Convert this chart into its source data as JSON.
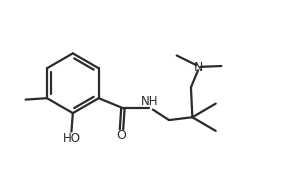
{
  "background": "#ffffff",
  "line_color": "#2b2b2b",
  "line_width": 1.6,
  "fig_width": 2.88,
  "fig_height": 1.75,
  "dpi": 100,
  "xlim": [
    0,
    10
  ],
  "ylim": [
    0,
    6.1
  ]
}
